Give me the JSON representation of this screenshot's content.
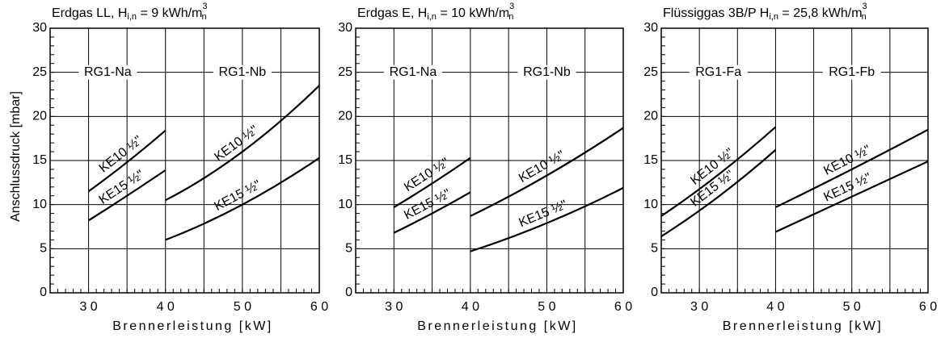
{
  "chart_data": [
    {
      "type": "line",
      "title": [
        {
          "text": "Erdgas LL, H"
        },
        {
          "text": "i,n",
          "style": "sub"
        },
        {
          "text": " = 9 kWh/m"
        },
        {
          "text": "3",
          "style": "sup"
        },
        {
          "text": "n",
          "style": "sub"
        }
      ],
      "ylabel": "Anschlussdruck [mbar]",
      "xlabel": "Brennerleistung  [kW]",
      "xlim": [
        25,
        60
      ],
      "ylim": [
        0,
        30
      ],
      "yticks": [
        0,
        5,
        10,
        15,
        20,
        25,
        30
      ],
      "xticks": [
        {
          "value": 30,
          "label": "3 0"
        },
        {
          "value": 40,
          "label": "4 0"
        },
        {
          "value": 50,
          "label": "5 0"
        },
        {
          "value": 60,
          "label": "6 0"
        }
      ],
      "xgrid": [
        30,
        35,
        40,
        45,
        50,
        55
      ],
      "grid": true,
      "color": "#000000",
      "groups": [
        {
          "label": "RG1-Na",
          "xlim": [
            25,
            40
          ],
          "y": 25
        },
        {
          "label": "RG1-Nb",
          "xlim": [
            40,
            60
          ],
          "y": 25
        }
      ],
      "series": [
        {
          "name": "KE10 ½\"",
          "x": [
            30,
            35,
            40
          ],
          "values": [
            11.5,
            14.8,
            18.4
          ]
        },
        {
          "name": "KE15 ½\"",
          "x": [
            30,
            35,
            40
          ],
          "values": [
            8.2,
            11,
            13.9
          ]
        },
        {
          "name": "KE10 ½\"",
          "x": [
            40,
            50,
            60
          ],
          "values": [
            10.5,
            16,
            23.5
          ]
        },
        {
          "name": "KE15 ½\"",
          "x": [
            40,
            50,
            60
          ],
          "values": [
            6,
            10,
            15.3
          ]
        }
      ]
    },
    {
      "type": "line",
      "title": [
        {
          "text": "Erdgas E, H"
        },
        {
          "text": "i,n",
          "style": "sub"
        },
        {
          "text": " = 10 kWh/m"
        },
        {
          "text": "3",
          "style": "sup"
        },
        {
          "text": "n",
          "style": "sub"
        }
      ],
      "xlabel": "Brennerleistung  [kW]",
      "xlim": [
        25,
        60
      ],
      "ylim": [
        0,
        30
      ],
      "yticks": [
        0,
        5,
        10,
        15,
        20,
        25,
        30
      ],
      "xticks": [
        {
          "value": 30,
          "label": "3 0"
        },
        {
          "value": 40,
          "label": "4 0"
        },
        {
          "value": 50,
          "label": "5 0"
        },
        {
          "value": 60,
          "label": "6 0"
        }
      ],
      "xgrid": [
        30,
        35,
        40,
        45,
        50,
        55
      ],
      "grid": true,
      "color": "#000000",
      "groups": [
        {
          "label": "RG1-Na",
          "xlim": [
            25,
            40
          ],
          "y": 25
        },
        {
          "label": "RG1-Nb",
          "xlim": [
            40,
            60
          ],
          "y": 25
        }
      ],
      "series": [
        {
          "name": "KE10 ½\"",
          "x": [
            30,
            35,
            40
          ],
          "values": [
            9.7,
            12.4,
            15.3
          ]
        },
        {
          "name": "KE15 ½\"",
          "x": [
            30,
            35,
            40
          ],
          "values": [
            6.8,
            9,
            11.4
          ]
        },
        {
          "name": "KE10 ½\"",
          "x": [
            40,
            50,
            60
          ],
          "values": [
            8.7,
            13.3,
            18.7
          ]
        },
        {
          "name": "KE15 ½\"",
          "x": [
            40,
            50,
            60
          ],
          "values": [
            4.7,
            7.9,
            11.9
          ]
        }
      ]
    },
    {
      "type": "line",
      "title": [
        {
          "text": "Flüssiggas 3B/P H"
        },
        {
          "text": "i,n",
          "style": "sub"
        },
        {
          "text": " = 25,8 kWh/m"
        },
        {
          "text": "3",
          "style": "sup"
        },
        {
          "text": "n",
          "style": "sub"
        }
      ],
      "xlabel": "Brennerleistung  [kW]",
      "xlim": [
        25,
        60
      ],
      "ylim": [
        0,
        30
      ],
      "yticks": [
        0,
        5,
        10,
        15,
        20,
        25,
        30
      ],
      "xticks": [
        {
          "value": 30,
          "label": "3 0"
        },
        {
          "value": 40,
          "label": "4 0"
        },
        {
          "value": 50,
          "label": "5 0"
        },
        {
          "value": 60,
          "label": "6 0"
        }
      ],
      "xgrid": [
        30,
        35,
        40,
        45,
        50,
        55
      ],
      "grid": true,
      "color": "#000000",
      "groups": [
        {
          "label": "RG1-Fa",
          "xlim": [
            25,
            40
          ],
          "y": 25
        },
        {
          "label": "RG1-Fb",
          "xlim": [
            40,
            60
          ],
          "y": 25
        }
      ],
      "series": [
        {
          "name": "KE10 ½\"",
          "x": [
            25,
            32.5,
            40
          ],
          "values": [
            8.7,
            13.4,
            18.8
          ]
        },
        {
          "name": "KE15 ½\"",
          "x": [
            25,
            32.5,
            40
          ],
          "values": [
            6.4,
            10.9,
            16.2
          ]
        },
        {
          "name": "KE10 ½\"",
          "x": [
            40,
            50,
            60
          ],
          "values": [
            9.7,
            14,
            18.5
          ]
        },
        {
          "name": "KE15 ½\"",
          "x": [
            40,
            50,
            60
          ],
          "values": [
            6.9,
            10.9,
            14.9
          ]
        }
      ]
    }
  ]
}
